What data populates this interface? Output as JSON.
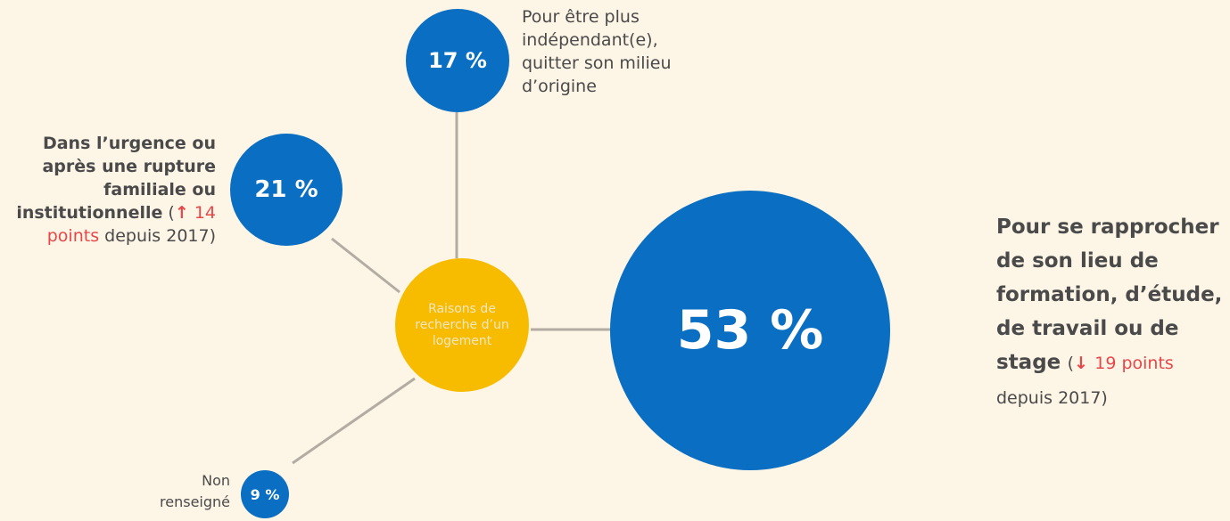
{
  "center": {
    "label": "Raisons de recherche d’un logement"
  },
  "nodes": [
    {
      "value_label": "17 %",
      "label": "Pour être plus indépendant(e), quitter son milieu d’origine"
    },
    {
      "value_label": "21 %",
      "label_strong": "Dans l’urgence ou après une rupture familiale ou institutionnelle",
      "note": {
        "open": "(",
        "arrow": "↑",
        "change": "14 points",
        "rest": "depuis 2017)"
      }
    },
    {
      "value_label": "53 %",
      "label_strong": "Pour se rapprocher de son lieu de formation, d’étude, de travail ou de stage",
      "note": {
        "open": "(",
        "arrow": "↓",
        "change": "19 points",
        "rest": "depuis 2017)"
      }
    },
    {
      "value_label": "9 %",
      "label": "Non renseigné"
    }
  ]
}
